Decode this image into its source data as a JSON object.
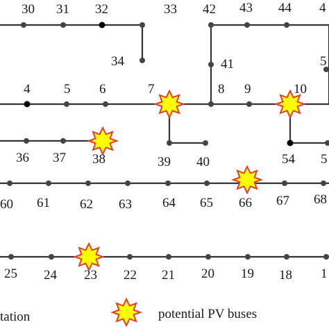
{
  "colors": {
    "line": "#333333",
    "bus_node": "#444444",
    "substation_node": "#000000",
    "star_fill": "#ffff00",
    "star_stroke": "#e8392a"
  },
  "bus_labels": {
    "b30": "30",
    "b31": "31",
    "b32": "32",
    "b33": "33",
    "b42": "42",
    "b43": "43",
    "b44": "44",
    "b45": "4",
    "b34": "34",
    "b41": "41",
    "b5x": "5",
    "b4": "4",
    "b5": "5",
    "b6": "6",
    "b7": "7",
    "b8": "8",
    "b9": "9",
    "b10": "10",
    "b36": "36",
    "b37": "37",
    "b38": "38",
    "b39": "39",
    "b40": "40",
    "b54": "54",
    "b55": "5",
    "b60": "60",
    "b61": "61",
    "b62": "62",
    "b63": "63",
    "b64": "64",
    "b65": "65",
    "b66": "66",
    "b67": "67",
    "b68": "68",
    "b25": "25",
    "b24": "24",
    "b23": "23",
    "b22": "22",
    "b21": "21",
    "b20": "20",
    "b19": "19",
    "b18": "18",
    "b17": "1"
  },
  "legend": {
    "station_label": "tation",
    "pv_label": "potential PV buses",
    "pv_icon": "star-icon"
  }
}
